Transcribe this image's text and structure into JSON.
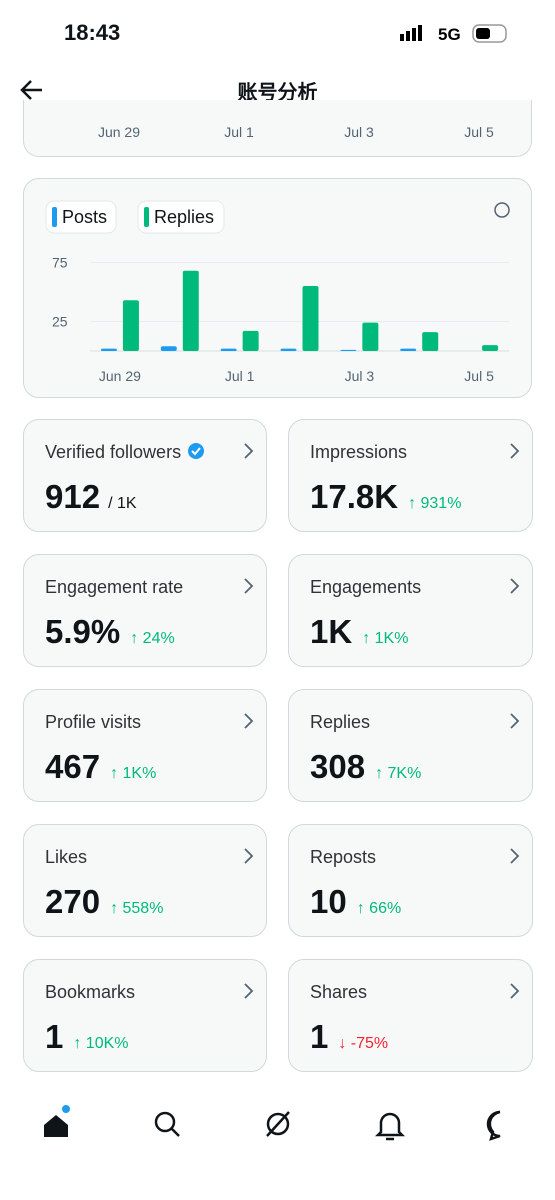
{
  "status_bar": {
    "time": "18:43",
    "network": "5G"
  },
  "header": {
    "title": "账号分析"
  },
  "top_chart": {
    "x_labels": [
      "Jun 29",
      "Jul 1",
      "Jul 3",
      "Jul 5"
    ]
  },
  "chart": {
    "type": "bar",
    "categories": [
      "Jun 29",
      null,
      "Jul 1",
      null,
      "Jul 3",
      null,
      "Jul 5"
    ],
    "series": [
      {
        "name": "Posts",
        "color": "#1d9bf0",
        "values": [
          2,
          4,
          2,
          2,
          1,
          2,
          0
        ]
      },
      {
        "name": "Replies",
        "color": "#00ba7c",
        "values": [
          43,
          68,
          17,
          55,
          24,
          16,
          5
        ]
      }
    ],
    "ylim": [
      0,
      83
    ],
    "yticks": [
      25,
      75
    ],
    "grid": true
  },
  "cards": [
    {
      "label": "Verified followers",
      "value": "912",
      "suffix": "/ 1K",
      "verified": true
    },
    {
      "label": "Impressions",
      "value": "17.8K",
      "change": "↑ 931%",
      "trend": "up"
    },
    {
      "label": "Engagement rate",
      "value": "5.9%",
      "change": "↑ 24%",
      "trend": "up"
    },
    {
      "label": "Engagements",
      "value": "1K",
      "change": "↑ 1K%",
      "trend": "up"
    },
    {
      "label": "Profile visits",
      "value": "467",
      "change": "↑ 1K%",
      "trend": "up"
    },
    {
      "label": "Replies",
      "value": "308",
      "change": "↑ 7K%",
      "trend": "up"
    },
    {
      "label": "Likes",
      "value": "270",
      "change": "↑ 558%",
      "trend": "up"
    },
    {
      "label": "Reposts",
      "value": "10",
      "change": "↑ 66%",
      "trend": "up"
    },
    {
      "label": "Bookmarks",
      "value": "1",
      "change": "↑ 10K%",
      "trend": "up"
    },
    {
      "label": "Shares",
      "value": "1",
      "change": "↓ -75%",
      "trend": "down"
    }
  ]
}
